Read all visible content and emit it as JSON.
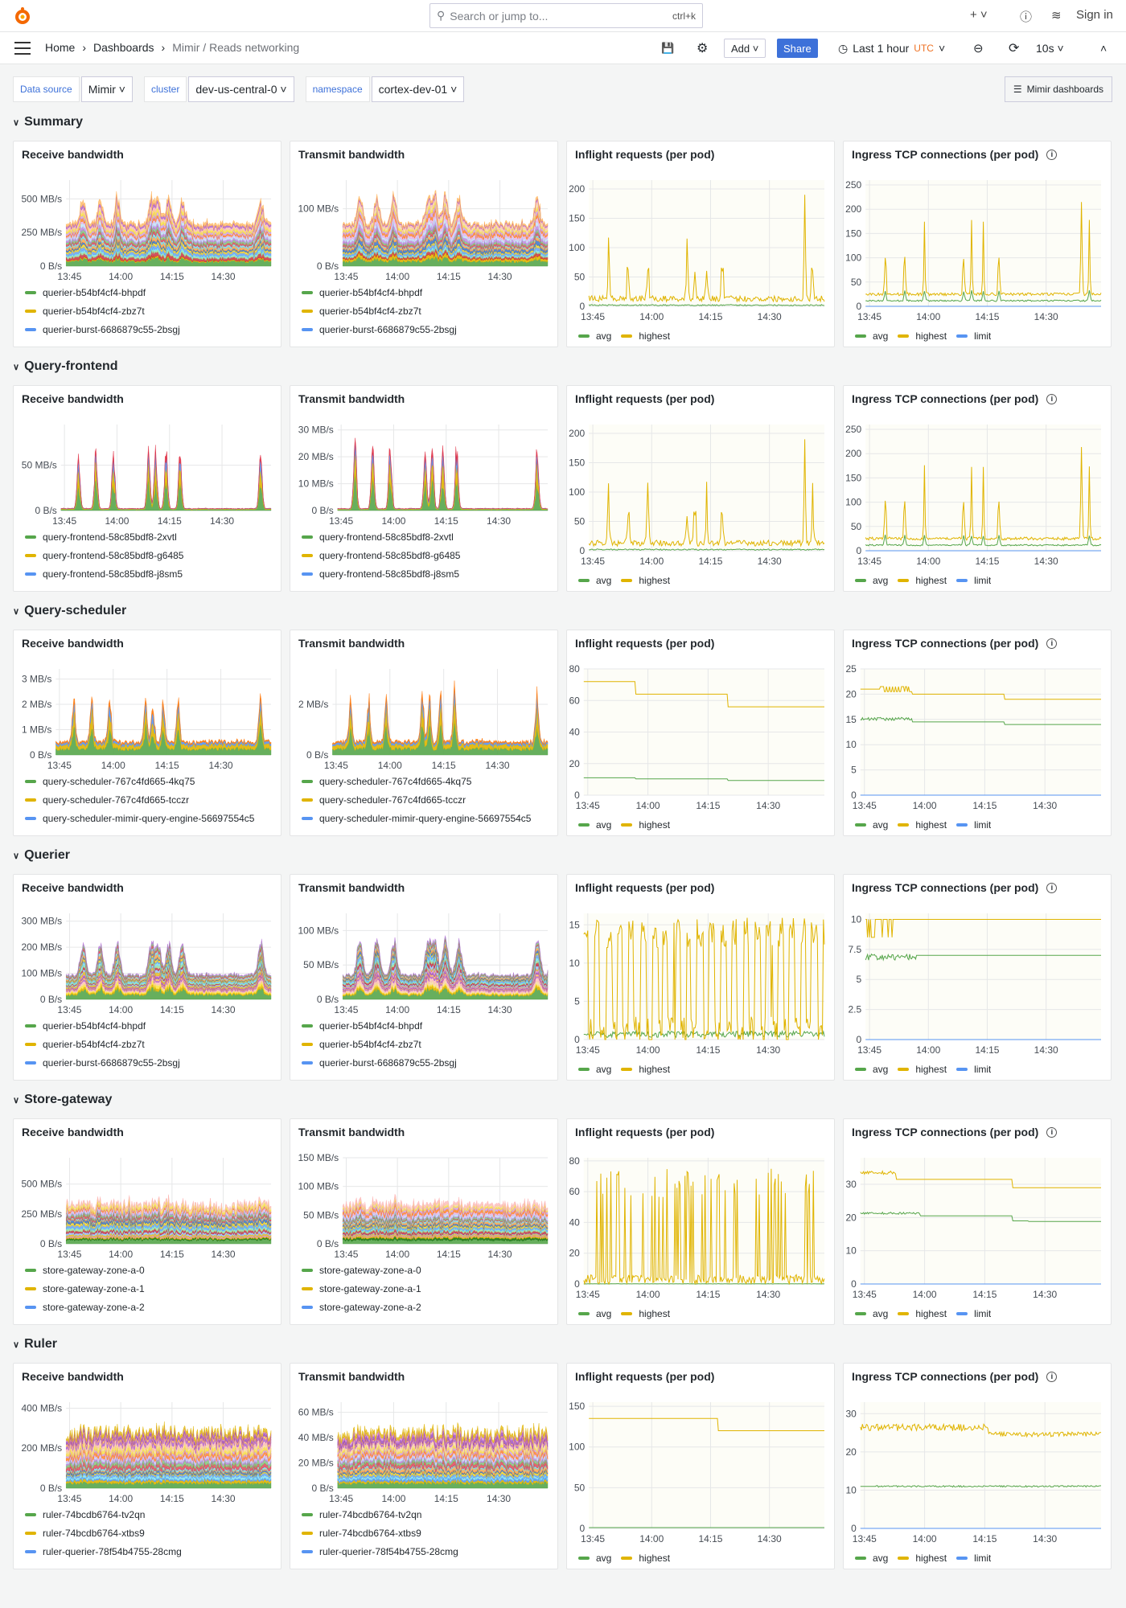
{
  "topbar": {
    "search_placeholder": "Search or jump to...",
    "search_shortcut": "ctrl+k",
    "add_icon": "plus-icon",
    "help_icon": "help-icon",
    "news_icon": "rss-icon",
    "sign_in": "Sign in"
  },
  "navbar": {
    "breadcrumbs": [
      "Home",
      "Dashboards",
      "Mimir / Reads networking"
    ],
    "add_label": "Add",
    "share_label": "Share",
    "time_range": "Last 1 hour",
    "timezone": "UTC",
    "refresh": "10s",
    "accent": "#3d71d9",
    "tz_color": "#ee7123"
  },
  "variables": [
    {
      "label": "Data source",
      "value": "Mimir"
    },
    {
      "label": "cluster",
      "value": "dev-us-central-0"
    },
    {
      "label": "namespace",
      "value": "cortex-dev-01"
    }
  ],
  "dashboards_button": "Mimir dashboards",
  "x_ticks": [
    "13:45",
    "14:00",
    "14:15",
    "14:30"
  ],
  "colors": {
    "avg": "#56a64b",
    "highest": "#e0b400",
    "limit": "#5794f2"
  },
  "panel_titles": [
    "Receive bandwidth",
    "Transmit bandwidth",
    "Inflight requests (per pod)",
    "Ingress TCP connections (per pod)"
  ],
  "line_legend": [
    "avg",
    "highest",
    "limit"
  ],
  "sections": [
    {
      "name": "Summary",
      "legend": [
        "querier-b54bf4cf4-bhpdf",
        "querier-b54bf4cf4-zbz7t",
        "querier-burst-6686879c55-2bsgj"
      ],
      "recv": {
        "ticks": [
          [
            0,
            "0 B/s"
          ],
          [
            250,
            "250 MB/s"
          ],
          [
            500,
            "500 MB/s"
          ]
        ],
        "ymax": 640
      },
      "trans": {
        "ticks": [
          [
            0,
            "0 B/s"
          ],
          [
            100,
            "100 MB/s"
          ]
        ],
        "ymax": 150
      },
      "inflight": {
        "ticks": [
          0,
          50,
          100,
          150,
          200
        ],
        "ymax": 215
      },
      "tcp": {
        "ticks": [
          0,
          50,
          100,
          150,
          200,
          250
        ],
        "ymax": 260
      }
    },
    {
      "name": "Query-frontend",
      "legend": [
        "query-frontend-58c85bdf8-2xvtl",
        "query-frontend-58c85bdf8-g6485",
        "query-frontend-58c85bdf8-j8sm5"
      ],
      "recv": {
        "ticks": [
          [
            0,
            "0 B/s"
          ],
          [
            50,
            "50 MB/s"
          ]
        ],
        "ymax": 95
      },
      "trans": {
        "ticks": [
          [
            0,
            "0 B/s"
          ],
          [
            10,
            "10 MB/s"
          ],
          [
            20,
            "20 MB/s"
          ],
          [
            30,
            "30 MB/s"
          ]
        ],
        "ymax": 32
      },
      "inflight": {
        "ticks": [
          0,
          50,
          100,
          150,
          200
        ],
        "ymax": 215
      },
      "tcp": {
        "ticks": [
          0,
          50,
          100,
          150,
          200,
          250
        ],
        "ymax": 260
      }
    },
    {
      "name": "Query-scheduler",
      "legend": [
        "query-scheduler-767c4fd665-4kq75",
        "query-scheduler-767c4fd665-tcczr",
        "query-scheduler-mimir-query-engine-56697554c5"
      ],
      "recv": {
        "ticks": [
          [
            0,
            "0 B/s"
          ],
          [
            1,
            "1 MB/s"
          ],
          [
            2,
            "2 MB/s"
          ],
          [
            3,
            "3 MB/s"
          ]
        ],
        "ymax": 3.4
      },
      "trans": {
        "ticks": [
          [
            0,
            "0 B/s"
          ],
          [
            2,
            "2 MB/s"
          ]
        ],
        "ymax": 3.4
      },
      "inflight": {
        "ticks": [
          0,
          20,
          40,
          60,
          80
        ],
        "ymax": 80
      },
      "tcp": {
        "ticks": [
          0,
          5,
          10,
          15,
          20,
          25
        ],
        "ymax": 25
      }
    },
    {
      "name": "Querier",
      "legend": [
        "querier-b54bf4cf4-bhpdf",
        "querier-b54bf4cf4-zbz7t",
        "querier-burst-6686879c55-2bsgj"
      ],
      "recv": {
        "ticks": [
          [
            0,
            "0 B/s"
          ],
          [
            100,
            "100 MB/s"
          ],
          [
            200,
            "200 MB/s"
          ],
          [
            300,
            "300 MB/s"
          ]
        ],
        "ymax": 330
      },
      "trans": {
        "ticks": [
          [
            0,
            "0 B/s"
          ],
          [
            50,
            "50 MB/s"
          ],
          [
            100,
            "100 MB/s"
          ]
        ],
        "ymax": 125
      },
      "inflight": {
        "ticks": [
          0,
          5,
          10,
          15
        ],
        "ymax": 16.5
      },
      "tcp": {
        "ticks": [
          [
            0,
            "0"
          ],
          [
            2.5,
            "2.5"
          ],
          [
            5,
            "5"
          ],
          [
            7.5,
            "7.5"
          ],
          [
            10,
            "10"
          ]
        ],
        "ymax": 10.5
      }
    },
    {
      "name": "Store-gateway",
      "legend": [
        "store-gateway-zone-a-0",
        "store-gateway-zone-a-1",
        "store-gateway-zone-a-2"
      ],
      "recv": {
        "ticks": [
          [
            0,
            "0 B/s"
          ],
          [
            250,
            "250 MB/s"
          ],
          [
            500,
            "500 MB/s"
          ]
        ],
        "ymax": 720
      },
      "trans": {
        "ticks": [
          [
            0,
            "0 B/s"
          ],
          [
            50,
            "50 MB/s"
          ],
          [
            100,
            "100 MB/s"
          ],
          [
            150,
            "150 MB/s"
          ]
        ],
        "ymax": 150
      },
      "inflight": {
        "ticks": [
          0,
          20,
          40,
          60,
          80
        ],
        "ymax": 82
      },
      "tcp": {
        "ticks": [
          0,
          10,
          20,
          30
        ],
        "ymax": 38
      }
    },
    {
      "name": "Ruler",
      "legend": [
        "ruler-74bcdb6764-tv2qn",
        "ruler-74bcdb6764-xtbs9",
        "ruler-querier-78f54b4755-28cmg"
      ],
      "recv": {
        "ticks": [
          [
            0,
            "0 B/s"
          ],
          [
            200,
            "200 MB/s"
          ],
          [
            400,
            "400 MB/s"
          ]
        ],
        "ymax": 430
      },
      "trans": {
        "ticks": [
          [
            0,
            "0 B/s"
          ],
          [
            20,
            "20 MB/s"
          ],
          [
            40,
            "40 MB/s"
          ],
          [
            60,
            "60 MB/s"
          ]
        ],
        "ymax": 68
      },
      "inflight": {
        "ticks": [
          0,
          50,
          100,
          150
        ],
        "ymax": 155
      },
      "tcp": {
        "ticks": [
          0,
          10,
          20,
          30
        ],
        "ymax": 33
      }
    }
  ]
}
